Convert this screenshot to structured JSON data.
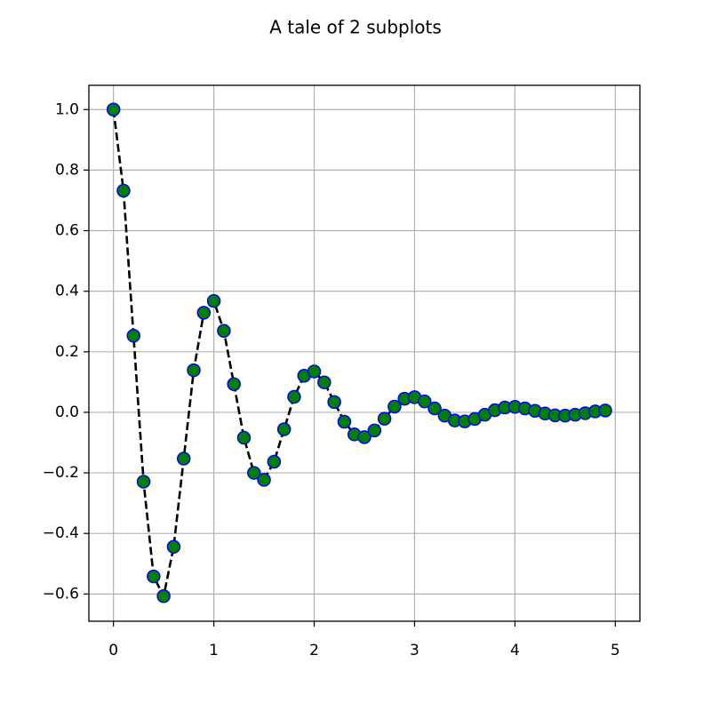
{
  "chart_data": {
    "type": "line",
    "title": "A tale of 2 subplots",
    "x": [
      0,
      0.1,
      0.2,
      0.3,
      0.4,
      0.5,
      0.6,
      0.7,
      0.8,
      0.9,
      1.0,
      1.1,
      1.2,
      1.3,
      1.4,
      1.5,
      1.6,
      1.7,
      1.8,
      1.9,
      2.0,
      2.1,
      2.2,
      2.3,
      2.4,
      2.5,
      2.6,
      2.7,
      2.8,
      2.9,
      3.0,
      3.1,
      3.2,
      3.3,
      3.4,
      3.5,
      3.6,
      3.7,
      3.8,
      3.9,
      4.0,
      4.1,
      4.2,
      4.3,
      4.4,
      4.5,
      4.6,
      4.7,
      4.8,
      4.9
    ],
    "values": [
      1.0,
      0.732,
      0.253,
      -0.229,
      -0.542,
      -0.607,
      -0.444,
      -0.153,
      0.139,
      0.329,
      0.368,
      0.269,
      0.093,
      -0.084,
      -0.2,
      -0.223,
      -0.163,
      -0.056,
      0.051,
      0.121,
      0.135,
      0.099,
      0.034,
      -0.031,
      -0.073,
      -0.082,
      -0.06,
      -0.021,
      0.019,
      0.045,
      0.05,
      0.036,
      0.013,
      -0.011,
      -0.027,
      -0.03,
      -0.022,
      -0.008,
      0.007,
      0.016,
      0.018,
      0.013,
      0.005,
      -0.004,
      -0.01,
      -0.011,
      -0.008,
      -0.003,
      0.003,
      0.006
    ],
    "line_color": "#000000",
    "line_style": "dashed",
    "marker_face": "#008000",
    "marker_edge": "#0000ff",
    "xlim": [
      -0.245,
      5.245
    ],
    "xticks": [
      0,
      1,
      2,
      3,
      4,
      5
    ],
    "ylim": [
      -0.69,
      1.08
    ],
    "yticks": [
      {
        "value": -0.6,
        "label": "−0.6"
      },
      {
        "value": -0.4,
        "label": "−0.4"
      },
      {
        "value": -0.2,
        "label": "−0.2"
      },
      {
        "value": 0,
        "label": "0.0"
      },
      {
        "value": 0.2,
        "label": "0.2"
      },
      {
        "value": 0.4,
        "label": "0.4"
      },
      {
        "value": 0.6,
        "label": "0.6"
      },
      {
        "value": 0.8,
        "label": "0.8"
      },
      {
        "value": 1.0,
        "label": "1.0"
      }
    ],
    "grid": true
  }
}
